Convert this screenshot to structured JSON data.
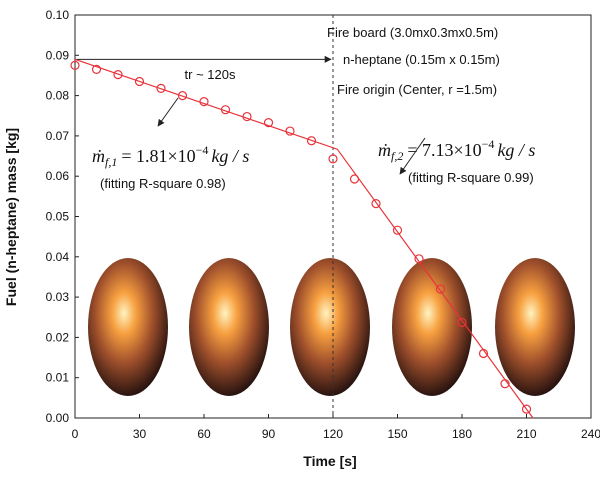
{
  "chart_data": {
    "type": "scatter",
    "x_label": "Time [s]",
    "y_label": "Fuel (n-heptane) mass [kg]",
    "xlim": [
      0,
      240
    ],
    "xticks": [
      0,
      30,
      60,
      90,
      120,
      150,
      180,
      210,
      240
    ],
    "ylim": [
      0,
      0.1
    ],
    "yticks": [
      {
        "value": 0,
        "label": "0.00"
      },
      {
        "value": 0.01,
        "label": "0.01"
      },
      {
        "value": 0.02,
        "label": "0.02"
      },
      {
        "value": 0.03,
        "label": "0.03"
      },
      {
        "value": 0.04,
        "label": "0.04"
      },
      {
        "value": 0.05,
        "label": "0.05"
      },
      {
        "value": 0.06,
        "label": "0.06"
      },
      {
        "value": 0.07,
        "label": "0.07"
      },
      {
        "value": 0.08,
        "label": "0.08"
      },
      {
        "value": 0.09,
        "label": "0.09"
      },
      {
        "value": 0.1,
        "label": "0.10"
      }
    ],
    "series": [
      {
        "color": "#e8333a",
        "marker": "open-circle",
        "x": [
          0,
          10,
          20,
          30,
          40,
          50,
          60,
          70,
          80,
          90,
          100,
          110,
          120,
          130,
          140,
          150,
          160,
          170,
          180,
          190,
          200,
          210
        ],
        "values": [
          0.0875,
          0.0865,
          0.0852,
          0.0835,
          0.0818,
          0.08,
          0.0785,
          0.0765,
          0.0748,
          0.0733,
          0.0712,
          0.0688,
          0.0643,
          0.0593,
          0.0532,
          0.0466,
          0.0395,
          0.032,
          0.0237,
          0.016,
          0.0085,
          0.0022
        ]
      },
      {
        "color": "#e8333a",
        "marker": "line",
        "x": [
          0,
          122,
          213
        ],
        "values": [
          0.089,
          0.0667,
          0
        ]
      }
    ],
    "vline": 120,
    "annotations": {
      "fire_board": "Fire board (3.0mx0.3mx0.5m)",
      "fuel": "n-heptane (0.15m x 0.15m)",
      "origin": "Fire origin (Center, r =1.5m)",
      "tr": "tr ~ 120s",
      "rate1": {
        "symbol": "ṁ",
        "subscript": "f,1",
        "text": "= 1.81×10",
        "exponent": "−4",
        "unit": "kg / s"
      },
      "fit1": "(fitting R-square 0.98)",
      "rate2": {
        "symbol": "ṁ",
        "subscript": "f,2",
        "text": "= 7.13×10",
        "exponent": "−4",
        "unit": "kg / s"
      },
      "fit2": "(fitting R-square 0.99)"
    }
  }
}
